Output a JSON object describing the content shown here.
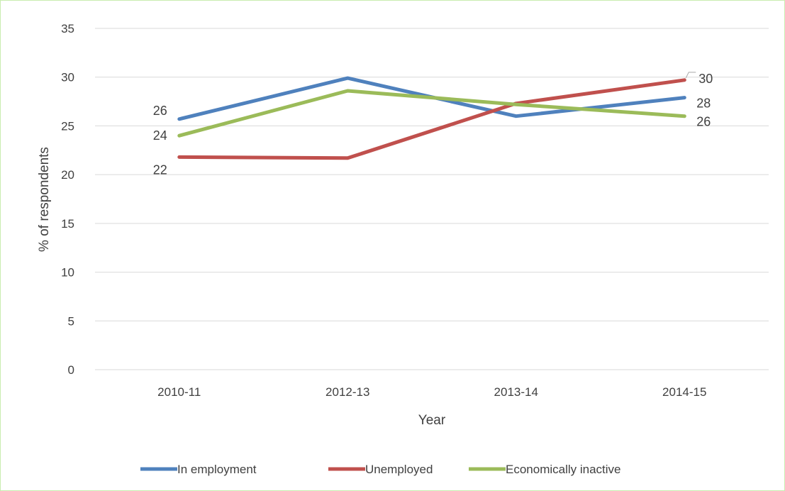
{
  "chart_data": {
    "type": "line",
    "title": "",
    "xlabel": "Year",
    "ylabel": "% of respondents",
    "categories": [
      "2010-11",
      "2012-13",
      "2013-14",
      "2014-15"
    ],
    "ylim": [
      0,
      35
    ],
    "yticks": [
      0,
      5,
      10,
      15,
      20,
      25,
      30,
      35
    ],
    "grid": true,
    "legend_position": "bottom",
    "series": [
      {
        "name": "In employment",
        "color": "#4f81bd",
        "values": [
          25.7,
          29.9,
          26.0,
          27.9
        ],
        "labels": [
          "26",
          "",
          "",
          "28"
        ]
      },
      {
        "name": "Unemployed",
        "color": "#c0504d",
        "values": [
          21.8,
          21.7,
          27.3,
          29.7
        ],
        "labels": [
          "22",
          "",
          "",
          "30"
        ]
      },
      {
        "name": "Economically inactive",
        "color": "#9bbb59",
        "values": [
          24.0,
          28.6,
          27.2,
          26.0
        ],
        "labels": [
          "24",
          "",
          "",
          "26"
        ]
      }
    ]
  }
}
